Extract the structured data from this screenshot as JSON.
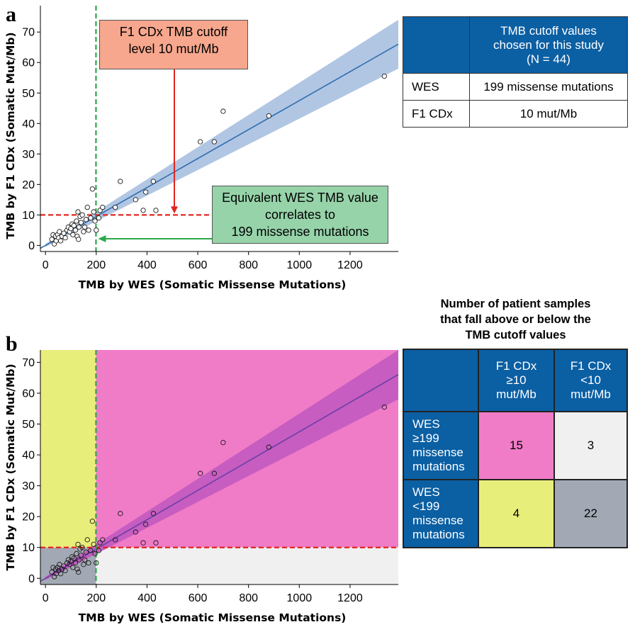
{
  "panel_a": {
    "letter": "a",
    "callout_cutoff": [
      "F1 CDx TMB cutoff",
      "level 10 mut/Mb"
    ],
    "callout_equivalent": [
      "Equivalent WES TMB value",
      "correlates to",
      "199 missense mutations"
    ],
    "table": {
      "header": [
        "TMB cutoff values",
        "chosen for this study",
        "(N = 44)"
      ],
      "rows": [
        {
          "label": "WES",
          "value": "199 missense mutations"
        },
        {
          "label": "F1 CDx",
          "value": "10 mut/Mb"
        }
      ]
    }
  },
  "panel_b": {
    "letter": "b",
    "title": [
      "Number of patient samples",
      "that fall above or below the",
      "TMB cutoff values"
    ],
    "table": {
      "col_headers": [
        [
          "F1 CDx",
          "≥10",
          "mut/Mb"
        ],
        [
          "F1 CDx",
          "<10",
          "mut/Mb"
        ]
      ],
      "rows": [
        {
          "label": [
            "WES",
            "≥199",
            "missense",
            "mutations"
          ],
          "values": [
            "15",
            "3"
          ]
        },
        {
          "label": [
            "WES",
            "<199",
            "missense",
            "mutations"
          ],
          "values": [
            "4",
            "22"
          ]
        }
      ]
    }
  },
  "colors": {
    "regression_a": "#2f6faf",
    "band_a": "#a8c0e0",
    "regression_b": "#6a3fa6",
    "band_b": "#c45cc0",
    "pink": "#f07cc8",
    "yellow": "#e8ee7a",
    "gray": "#a3a9b4",
    "light": "#f0f0f0",
    "cutoff_red": "#e0261f",
    "cutoff_green": "#2aa84a",
    "arrow_red": "#e0261f",
    "arrow_green": "#2aa84a",
    "callout_salmon": "#f7a78e",
    "callout_green": "#96d3a9",
    "table_blue": "#0b5fa3"
  },
  "chart_data": [
    {
      "type": "scatter",
      "panel": "a",
      "xlabel": "TMB by WES (Somatic Missense Mutations)",
      "ylabel": "TMB by F1 CDx (Somatic Mut/Mb)",
      "xlim": [
        -20,
        1390
      ],
      "ylim": [
        -2,
        74
      ],
      "xticks": [
        0,
        200,
        400,
        600,
        800,
        1000,
        1200
      ],
      "yticks": [
        0,
        10,
        20,
        30,
        40,
        50,
        60,
        70
      ],
      "x_cutoff": 199,
      "y_cutoff": 10,
      "regression": {
        "intercept": 0,
        "slope": 0.0475
      },
      "ci": {
        "at_x0": [
          -0.5,
          0.5
        ],
        "at_x1390": [
          58,
          74
        ]
      },
      "points": [
        [
          25,
          2
        ],
        [
          30,
          3.5
        ],
        [
          35,
          0.5
        ],
        [
          40,
          3
        ],
        [
          42,
          1.5
        ],
        [
          48,
          3.5
        ],
        [
          52,
          2.5
        ],
        [
          55,
          4.5
        ],
        [
          60,
          1.5
        ],
        [
          65,
          3
        ],
        [
          72,
          4
        ],
        [
          78,
          2.5
        ],
        [
          85,
          5
        ],
        [
          90,
          6
        ],
        [
          95,
          4.5
        ],
        [
          100,
          5.5
        ],
        [
          105,
          7
        ],
        [
          108,
          3.5
        ],
        [
          112,
          6.5
        ],
        [
          118,
          5
        ],
        [
          122,
          8
        ],
        [
          125,
          3
        ],
        [
          128,
          11
        ],
        [
          130,
          2
        ],
        [
          132,
          6
        ],
        [
          136,
          9.5
        ],
        [
          140,
          7.5
        ],
        [
          145,
          10
        ],
        [
          150,
          4.5
        ],
        [
          155,
          6
        ],
        [
          160,
          8.5
        ],
        [
          165,
          12.5
        ],
        [
          170,
          5
        ],
        [
          178,
          9
        ],
        [
          185,
          18.5
        ],
        [
          190,
          11
        ],
        [
          195,
          8
        ],
        [
          200,
          5
        ],
        [
          210,
          9
        ],
        [
          215,
          11.5
        ],
        [
          225,
          12.5
        ],
        [
          275,
          12.5
        ],
        [
          295,
          21
        ],
        [
          355,
          15
        ],
        [
          385,
          11.5
        ],
        [
          395,
          17.5
        ],
        [
          425,
          21
        ],
        [
          435,
          11.5
        ],
        [
          610,
          34
        ],
        [
          665,
          34
        ],
        [
          700,
          44
        ],
        [
          880,
          42.5
        ],
        [
          1335,
          55.5
        ]
      ]
    },
    {
      "type": "scatter",
      "panel": "b",
      "xlabel": "TMB by WES (Somatic Missense Mutations)",
      "ylabel": "TMB by F1 CDx (Somatic Mut/Mb)",
      "xlim": [
        -20,
        1390
      ],
      "ylim": [
        -2,
        74
      ],
      "xticks": [
        0,
        200,
        400,
        600,
        800,
        1000,
        1200
      ],
      "yticks": [
        0,
        10,
        20,
        30,
        40,
        50,
        60,
        70
      ],
      "x_cutoff": 199,
      "y_cutoff": 10,
      "quadrant_counts": {
        "upper_right": 15,
        "lower_right": 3,
        "upper_left": 4,
        "lower_left": 22
      },
      "regression": {
        "intercept": 0,
        "slope": 0.0475
      },
      "ci": {
        "at_x0": [
          -0.5,
          0.5
        ],
        "at_x1390": [
          58,
          74
        ]
      },
      "points": [
        [
          25,
          2
        ],
        [
          30,
          3.5
        ],
        [
          35,
          0.5
        ],
        [
          40,
          3
        ],
        [
          42,
          1.5
        ],
        [
          48,
          3.5
        ],
        [
          52,
          2.5
        ],
        [
          55,
          4.5
        ],
        [
          60,
          1.5
        ],
        [
          65,
          3
        ],
        [
          72,
          4
        ],
        [
          78,
          2.5
        ],
        [
          85,
          5
        ],
        [
          90,
          6
        ],
        [
          95,
          4.5
        ],
        [
          100,
          5.5
        ],
        [
          105,
          7
        ],
        [
          108,
          3.5
        ],
        [
          112,
          6.5
        ],
        [
          118,
          5
        ],
        [
          122,
          8
        ],
        [
          125,
          3
        ],
        [
          128,
          11
        ],
        [
          130,
          2
        ],
        [
          132,
          6
        ],
        [
          136,
          9.5
        ],
        [
          140,
          7.5
        ],
        [
          145,
          10
        ],
        [
          150,
          4.5
        ],
        [
          155,
          6
        ],
        [
          160,
          8.5
        ],
        [
          165,
          12.5
        ],
        [
          170,
          5
        ],
        [
          178,
          9
        ],
        [
          185,
          18.5
        ],
        [
          190,
          11
        ],
        [
          195,
          8
        ],
        [
          200,
          5
        ],
        [
          210,
          9
        ],
        [
          215,
          11.5
        ],
        [
          225,
          12.5
        ],
        [
          275,
          12.5
        ],
        [
          295,
          21
        ],
        [
          355,
          15
        ],
        [
          385,
          11.5
        ],
        [
          395,
          17.5
        ],
        [
          425,
          21
        ],
        [
          435,
          11.5
        ],
        [
          610,
          34
        ],
        [
          665,
          34
        ],
        [
          700,
          44
        ],
        [
          880,
          42.5
        ],
        [
          1335,
          55.5
        ]
      ]
    }
  ]
}
